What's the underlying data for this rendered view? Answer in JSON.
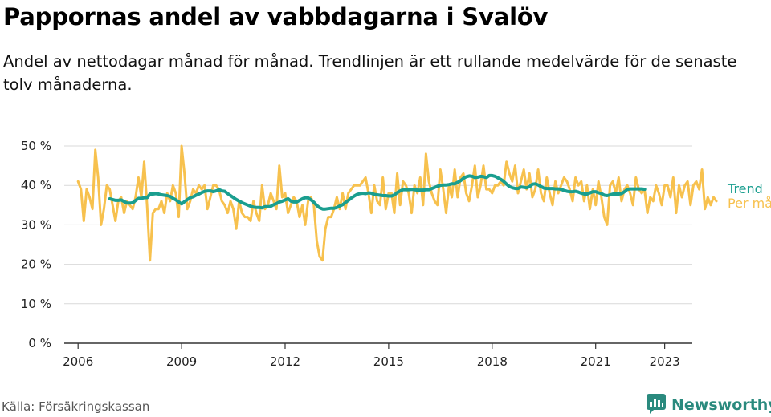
{
  "header": {
    "title": "Pappornas andel av vabbdagarna i Svalöv",
    "subtitle": "Andel av nettodagar månad för månad. Trendlinjen är ett rullande medelvärde för de senaste tolv månaderna."
  },
  "footer": {
    "source": "Källa: Försäkringskassan",
    "brand": "Newsworthy",
    "brand_icon": "bar-chart-speech-icon"
  },
  "colors": {
    "trend": "#1a9e8f",
    "monthly": "#f7c14e",
    "grid": "#d9d9d9",
    "axis": "#333333",
    "brand": "#2a8a7e"
  },
  "chart_data": {
    "type": "line",
    "title": "Pappornas andel av vabbdagarna i Svalöv",
    "xlabel": "",
    "ylabel": "",
    "xlim": [
      2005.6,
      2023.8
    ],
    "ylim": [
      0,
      50
    ],
    "x_ticks": [
      2006,
      2009,
      2012,
      2015,
      2018,
      2021,
      2023
    ],
    "y_ticks": [
      {
        "value": 0,
        "label": "0 %"
      },
      {
        "value": 10,
        "label": "10 %"
      },
      {
        "value": 20,
        "label": "20 %"
      },
      {
        "value": 30,
        "label": "30 %"
      },
      {
        "value": 40,
        "label": "40 %"
      },
      {
        "value": 50,
        "label": "50 %"
      }
    ],
    "grid": true,
    "legend": "right end of lines",
    "series": [
      {
        "name": "Per månad",
        "color": "#f7c14e",
        "x_start": 2006.0,
        "x_step": 0.08333,
        "values": [
          41,
          39,
          31,
          39,
          37,
          34,
          49,
          42,
          30,
          34,
          40,
          39,
          35,
          31,
          36,
          37,
          33,
          36,
          35,
          34,
          37,
          42,
          37,
          46,
          35,
          21,
          33,
          34,
          34,
          36,
          33,
          38,
          36,
          40,
          38,
          32,
          50,
          43,
          34,
          36,
          39,
          38,
          40,
          39,
          40,
          34,
          37,
          40,
          40,
          39,
          36,
          35,
          33,
          36,
          34,
          29,
          36,
          33,
          32,
          32,
          31,
          36,
          33,
          31,
          40,
          34,
          35,
          38,
          36,
          34,
          45,
          37,
          38,
          33,
          35,
          37,
          36,
          32,
          35,
          30,
          36,
          37,
          35,
          26,
          22,
          21,
          29,
          32,
          32,
          34,
          37,
          34,
          38,
          34,
          38,
          39,
          40,
          40,
          40,
          41,
          42,
          38,
          33,
          40,
          36,
          35,
          42,
          34,
          38,
          38,
          33,
          43,
          35,
          41,
          40,
          38,
          33,
          40,
          38,
          42,
          35,
          48,
          41,
          38,
          36,
          35,
          44,
          39,
          33,
          40,
          37,
          44,
          37,
          42,
          43,
          38,
          36,
          40,
          45,
          37,
          40,
          45,
          39,
          39,
          38,
          40,
          40,
          41,
          40,
          46,
          43,
          41,
          45,
          38,
          41,
          44,
          39,
          43,
          37,
          39,
          44,
          38,
          36,
          42,
          38,
          35,
          41,
          38,
          40,
          42,
          41,
          39,
          36,
          42,
          40,
          41,
          36,
          40,
          34,
          39,
          35,
          41,
          37,
          32,
          30,
          40,
          41,
          38,
          42,
          36,
          39,
          40,
          38,
          35,
          42,
          39,
          38,
          39,
          33,
          37,
          36,
          40,
          38,
          35,
          40,
          40,
          37,
          42,
          33,
          40,
          37,
          40,
          41,
          35,
          40,
          41,
          39,
          44,
          34,
          37,
          35,
          37,
          36
        ],
        "note": "values read approximately from the plot"
      },
      {
        "name": "Trend",
        "color": "#1a9e8f",
        "x_start": 2006.92,
        "x_step": 0.08333,
        "values": [
          36.6,
          36.4,
          36.2,
          36.2,
          36.3,
          35.9,
          35.5,
          35.5,
          35.6,
          36.2,
          36.7,
          36.7,
          36.9,
          36.9,
          37.8,
          37.8,
          37.9,
          37.8,
          37.6,
          37.5,
          37.4,
          37.2,
          36.7,
          36.3,
          35.8,
          35.3,
          35.9,
          36.4,
          36.9,
          37.1,
          37.5,
          37.8,
          38.2,
          38.5,
          38.6,
          38.6,
          38.4,
          38.6,
          38.9,
          38.6,
          38.5,
          37.9,
          37.4,
          36.9,
          36.4,
          36.0,
          35.6,
          35.3,
          35.0,
          34.7,
          34.5,
          34.4,
          34.4,
          34.3,
          34.6,
          34.6,
          34.7,
          35.1,
          35.4,
          35.8,
          36.0,
          36.3,
          36.6,
          36.0,
          35.8,
          35.8,
          36.2,
          36.6,
          36.9,
          36.8,
          36.3,
          35.7,
          34.9,
          34.3,
          34.0,
          34.0,
          34.1,
          34.2,
          34.2,
          34.4,
          34.8,
          35.1,
          35.7,
          36.2,
          36.8,
          37.3,
          37.7,
          37.9,
          38.0,
          37.9,
          38.1,
          38.0,
          37.7,
          37.6,
          37.5,
          37.4,
          37.4,
          37.3,
          37.3,
          37.6,
          38.2,
          38.6,
          38.9,
          38.9,
          38.9,
          39.0,
          38.9,
          38.8,
          38.8,
          38.8,
          38.9,
          38.9,
          39.2,
          39.5,
          39.8,
          40.0,
          40.1,
          40.1,
          40.2,
          40.4,
          40.4,
          40.8,
          41.2,
          41.8,
          42.2,
          42.4,
          42.3,
          42.0,
          42.1,
          42.3,
          42.2,
          42.0,
          42.5,
          42.5,
          42.3,
          41.9,
          41.5,
          41.0,
          40.3,
          39.7,
          39.4,
          39.2,
          39.2,
          39.6,
          39.5,
          39.4,
          39.7,
          40.3,
          40.4,
          40.1,
          39.7,
          39.3,
          39.2,
          39.2,
          39.2,
          39.1,
          39.1,
          39.0,
          38.7,
          38.5,
          38.4,
          38.4,
          38.5,
          38.3,
          38.0,
          37.8,
          37.8,
          38.1,
          38.4,
          38.4,
          38.1,
          37.9,
          37.5,
          37.4,
          37.6,
          37.8,
          37.8,
          37.8,
          37.9,
          38.4,
          39.0,
          39.1,
          39.1,
          39.1,
          39.1,
          39.1,
          39.0
        ]
      }
    ]
  }
}
